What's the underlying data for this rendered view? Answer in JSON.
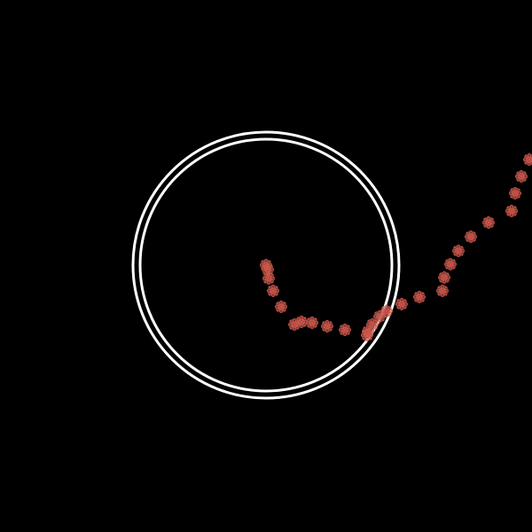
{
  "scene": {
    "background_color": "#000000",
    "ring_color": "#ffffff",
    "marker_color": "#c8574c",
    "marker_icon": "asterisk-flower-icon",
    "marker_count": 27
  }
}
